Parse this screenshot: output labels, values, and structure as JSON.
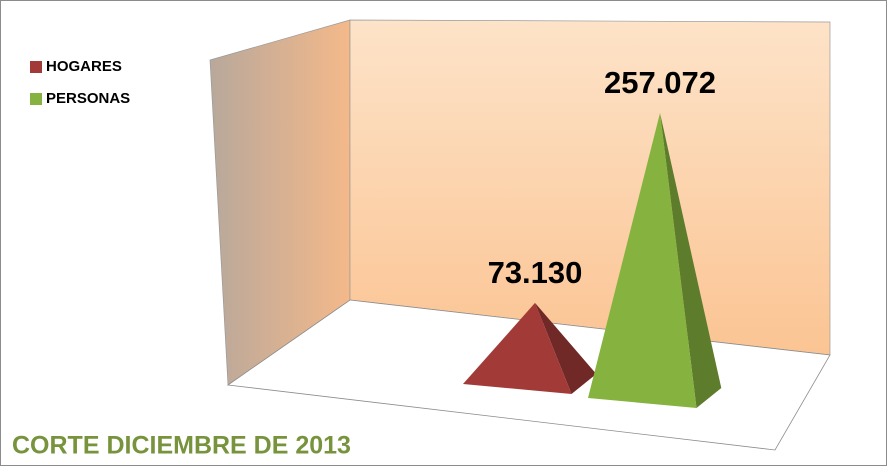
{
  "chart_data": {
    "type": "pyramid",
    "title": "CORTE DICIEMBRE DE 2013",
    "legend": "top-left",
    "series": [
      {
        "name": "HOGARES",
        "color": "#a23a38",
        "values": [
          73130
        ],
        "value_labels": [
          "73.130"
        ]
      },
      {
        "name": "PERSONAS",
        "color": "#86b33f",
        "values": [
          257072
        ],
        "value_labels": [
          "257.072"
        ]
      }
    ]
  }
}
